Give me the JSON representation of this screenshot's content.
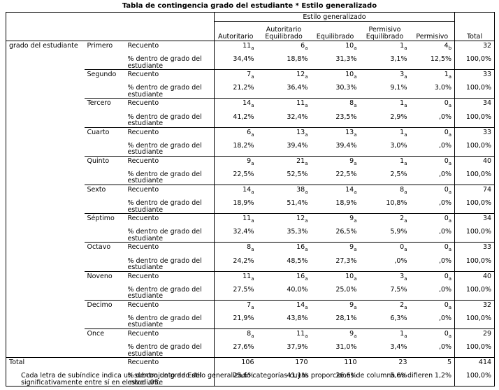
{
  "title": "Tabla de contingencia grado del estudiante * Estilo generalizado",
  "table": {
    "group_header": "Estilo generalizado",
    "columns": [
      "Autoritario",
      "Autoritario Equilibrado",
      "Equilibrado",
      "Permisivo Equilibrado",
      "Permisivo",
      "Total"
    ],
    "row_variable": "grado del estudiante",
    "measures": [
      "Recuento",
      "% dentro de grado del estudiante"
    ],
    "rows": [
      {
        "grade": "Primero",
        "counts": [
          "11",
          "6",
          "10",
          "1",
          "4",
          "32"
        ],
        "subs": [
          "a",
          "a",
          "a",
          "a",
          "b"
        ],
        "percents": [
          "34,4%",
          "18,8%",
          "31,3%",
          "3,1%",
          "12,5%",
          "100,0%"
        ]
      },
      {
        "grade": "Segundo",
        "counts": [
          "7",
          "12",
          "10",
          "3",
          "1",
          "33"
        ],
        "subs": [
          "a",
          "a",
          "a",
          "a",
          "a"
        ],
        "percents": [
          "21,2%",
          "36,4%",
          "30,3%",
          "9,1%",
          "3,0%",
          "100,0%"
        ]
      },
      {
        "grade": "Tercero",
        "counts": [
          "14",
          "11",
          "8",
          "1",
          "0",
          "34"
        ],
        "subs": [
          "a",
          "a",
          "a",
          "a",
          "a"
        ],
        "percents": [
          "41,2%",
          "32,4%",
          "23,5%",
          "2,9%",
          ",0%",
          "100,0%"
        ]
      },
      {
        "grade": "Cuarto",
        "counts": [
          "6",
          "13",
          "13",
          "1",
          "0",
          "33"
        ],
        "subs": [
          "a",
          "a",
          "a",
          "a",
          "a"
        ],
        "percents": [
          "18,2%",
          "39,4%",
          "39,4%",
          "3,0%",
          ",0%",
          "100,0%"
        ]
      },
      {
        "grade": "Quinto",
        "counts": [
          "9",
          "21",
          "9",
          "1",
          "0",
          "40"
        ],
        "subs": [
          "a",
          "a",
          "a",
          "a",
          "a"
        ],
        "percents": [
          "22,5%",
          "52,5%",
          "22,5%",
          "2,5%",
          ",0%",
          "100,0%"
        ]
      },
      {
        "grade": "Sexto",
        "counts": [
          "14",
          "38",
          "14",
          "8",
          "0",
          "74"
        ],
        "subs": [
          "a",
          "a",
          "a",
          "a",
          "a"
        ],
        "percents": [
          "18,9%",
          "51,4%",
          "18,9%",
          "10,8%",
          ",0%",
          "100,0%"
        ]
      },
      {
        "grade": "Séptimo",
        "counts": [
          "11",
          "12",
          "9",
          "2",
          "0",
          "34"
        ],
        "subs": [
          "a",
          "a",
          "a",
          "a",
          "a"
        ],
        "percents": [
          "32,4%",
          "35,3%",
          "26,5%",
          "5,9%",
          ",0%",
          "100,0%"
        ]
      },
      {
        "grade": "Octavo",
        "counts": [
          "8",
          "16",
          "9",
          "0",
          "0",
          "33"
        ],
        "subs": [
          "a",
          "a",
          "a",
          "a",
          "a"
        ],
        "percents": [
          "24,2%",
          "48,5%",
          "27,3%",
          ",0%",
          ",0%",
          "100,0%"
        ]
      },
      {
        "grade": "Noveno",
        "counts": [
          "11",
          "16",
          "10",
          "3",
          "0",
          "40"
        ],
        "subs": [
          "a",
          "a",
          "a",
          "a",
          "a"
        ],
        "percents": [
          "27,5%",
          "40,0%",
          "25,0%",
          "7,5%",
          ",0%",
          "100,0%"
        ]
      },
      {
        "grade": "Decimo",
        "counts": [
          "7",
          "14",
          "9",
          "2",
          "0",
          "32"
        ],
        "subs": [
          "a",
          "a",
          "a",
          "a",
          "a"
        ],
        "percents": [
          "21,9%",
          "43,8%",
          "28,1%",
          "6,3%",
          ",0%",
          "100,0%"
        ]
      },
      {
        "grade": "Once",
        "counts": [
          "8",
          "11",
          "9",
          "1",
          "0",
          "29"
        ],
        "subs": [
          "a",
          "a",
          "a",
          "a",
          "a"
        ],
        "percents": [
          "27,6%",
          "37,9%",
          "31,0%",
          "3,4%",
          ",0%",
          "100,0%"
        ]
      }
    ],
    "total": {
      "label": "Total",
      "counts": [
        "106",
        "170",
        "110",
        "23",
        "5",
        "414"
      ],
      "percents": [
        "25,6%",
        "41,1%",
        "26,6%",
        "5,6%",
        "1,2%",
        "100,0%"
      ]
    }
  },
  "footnote": "Cada letra de subíndice indica un subconjunto de Estilo generalizado categorías cuyas proporciones de columna no difieren significativamente entre sí en el nivel ,05."
}
